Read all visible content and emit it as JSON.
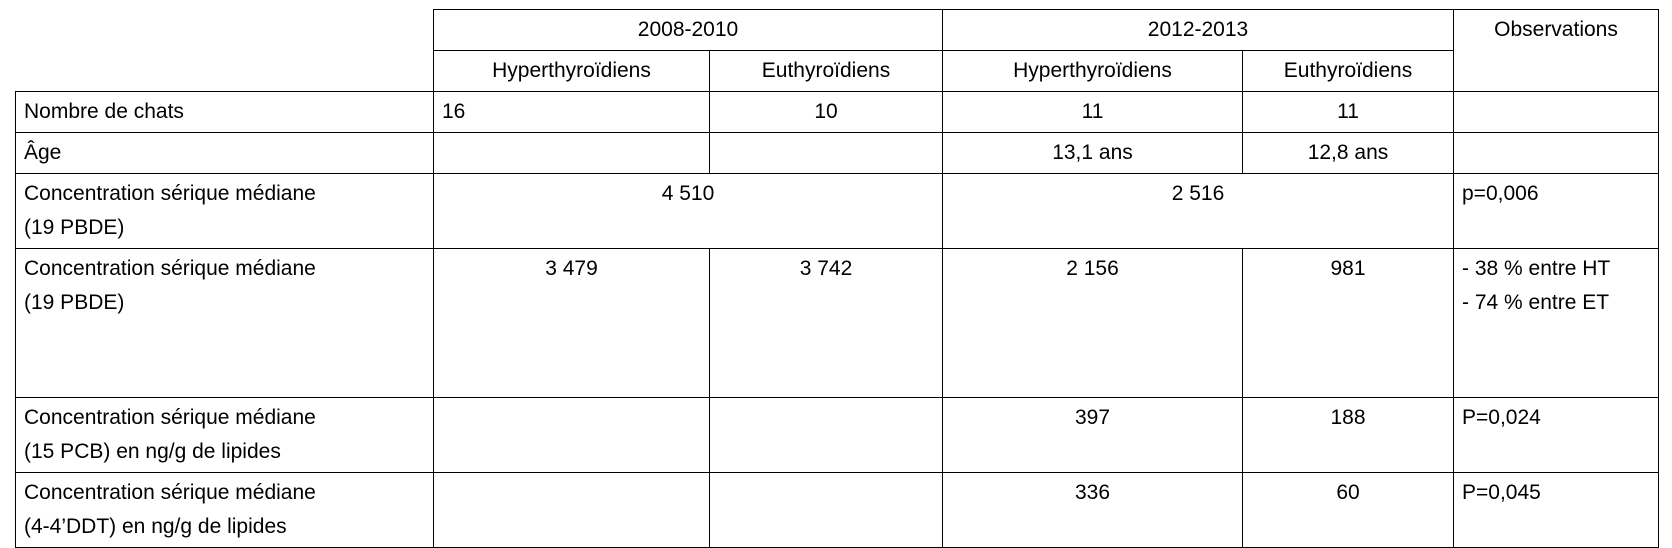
{
  "header": {
    "periods": [
      "2008-2010",
      "2012-2013"
    ],
    "observations": "Observations",
    "groups": [
      "Hyperthyroïdiens",
      "Euthyroïdiens",
      "Hyperthyroïdiens",
      "Euthyroïdiens"
    ]
  },
  "rows": [
    {
      "label": [
        "Nombre de chats"
      ],
      "values": [
        "16",
        "10",
        "11",
        "11"
      ]
    },
    {
      "label": [
        "Âge"
      ],
      "values": [
        null,
        null,
        "13,1 ans",
        "12,8 ans"
      ]
    },
    {
      "label": [
        "Concentration sérique médiane",
        "(19 PBDE)"
      ],
      "values": [
        "4 510",
        "2 516"
      ],
      "observation": [
        "p=0,006"
      ]
    },
    {
      "label": [
        "Concentration sérique médiane",
        "(19 PBDE)"
      ],
      "values": [
        "3 479",
        "3 742",
        "2 156",
        "981"
      ],
      "observation": [
        "- 38 % entre HT",
        "- 74 % entre ET"
      ]
    },
    {
      "label": [
        "Concentration sérique médiane",
        "(15 PCB) en ng/g de lipides"
      ],
      "values": [
        null,
        null,
        "397",
        "188"
      ],
      "observation": [
        "P=0,024"
      ]
    },
    {
      "label": [
        "Concentration sérique médiane",
        "(4-4’DDT) en ng/g de lipides"
      ],
      "values": [
        null,
        null,
        "336",
        "60"
      ],
      "observation": [
        "P=0,045"
      ]
    }
  ]
}
